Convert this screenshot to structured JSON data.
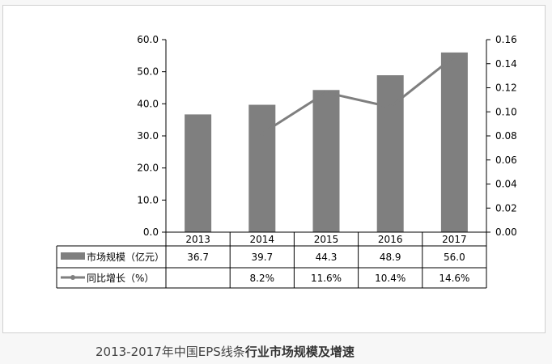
{
  "chart_data": {
    "type": "bar",
    "categories": [
      "2013",
      "2014",
      "2015",
      "2016",
      "2017"
    ],
    "series": [
      {
        "name": "市场规模（亿元）",
        "type": "bar",
        "axis": "left",
        "values": [
          36.7,
          39.7,
          44.3,
          48.9,
          56.0
        ],
        "labels": [
          "36.7",
          "39.7",
          "44.3",
          "48.9",
          "56.0"
        ],
        "color": "#7f7f7f"
      },
      {
        "name": "同比增长（%）",
        "type": "line",
        "axis": "right",
        "values": [
          null,
          0.082,
          0.116,
          0.104,
          0.146
        ],
        "labels": [
          "",
          "8.2%",
          "11.6%",
          "10.4%",
          "14.6%"
        ],
        "color": "#7f7f7f"
      }
    ],
    "ylim": [
      0,
      60
    ],
    "y_ticks": [
      "0.0",
      "10.0",
      "20.0",
      "30.0",
      "40.0",
      "50.0",
      "60.0"
    ],
    "y2lim": [
      0,
      0.16
    ],
    "y2_ticks": [
      "0.00",
      "0.02",
      "0.04",
      "0.06",
      "0.08",
      "0.10",
      "0.12",
      "0.14",
      "0.16"
    ],
    "legend": "data-table"
  },
  "caption": {
    "normal": "2013-2017年中国EPS线条",
    "bold": "行业市场规模及增速"
  }
}
